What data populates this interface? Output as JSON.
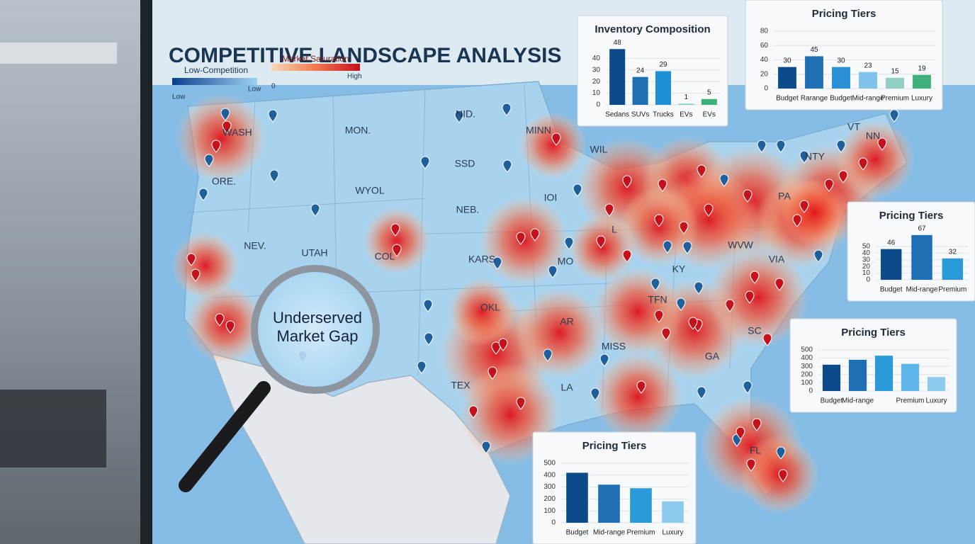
{
  "header": {
    "title": "COMPETITIVE LANDSCAPE ANALYSIS"
  },
  "legend": {
    "low_title": "Low-Competition",
    "low_left": "Low",
    "low_right": "Low",
    "sat_title": "Market Saturation",
    "sat_left": "0",
    "sat_right": "High"
  },
  "map": {
    "labels": [
      "WASH",
      "ORE.",
      "MON.",
      "NID.",
      "SSD",
      "WYOL",
      "NEB.",
      "NEV.",
      "UTAH",
      "COL",
      "KARS",
      "MO",
      "IOI",
      "MINN",
      "WIL",
      "L",
      "OKL",
      "TEX",
      "AR",
      "LA",
      "MISS",
      "KY",
      "TFN",
      "GA",
      "SC",
      "FL",
      "WVW",
      "VIA",
      "PA",
      "NTY",
      "VT",
      "NN"
    ]
  },
  "callout": {
    "lines": [
      "Underserved",
      "Market Gap"
    ]
  },
  "chart_data": [
    {
      "type": "bar",
      "title": "Inventory Composition",
      "categories": [
        "Sedans",
        "SUVs",
        "Trucks",
        "EVs",
        "EVs"
      ],
      "values": [
        48,
        24,
        29,
        1,
        5
      ],
      "colors": [
        "#0d4a8a",
        "#1f6fb5",
        "#1e90d6",
        "#7fd0c8",
        "#3fb07a"
      ],
      "ylim": [
        0,
        50
      ],
      "yticks": [
        0,
        10,
        20,
        30,
        40
      ],
      "grid": true
    },
    {
      "type": "bar",
      "title": "Pricing Tiers",
      "categories": [
        "Budget",
        "Rarange",
        "Budget",
        "Mid-range",
        "Premium",
        "Luxury"
      ],
      "values": [
        30,
        45,
        30,
        23,
        15,
        19
      ],
      "colors": [
        "#0d4a8a",
        "#1f6fb5",
        "#2a8fd6",
        "#7fc2ec",
        "#8fd0c4",
        "#3fb07a"
      ],
      "ylim": [
        0,
        80
      ],
      "yticks": [
        0,
        20,
        40,
        60,
        80
      ],
      "grid": true
    },
    {
      "type": "bar",
      "title": "Pricing Tiers",
      "categories": [
        "Budget",
        "Mid-range",
        "Premium"
      ],
      "values": [
        46,
        67,
        32
      ],
      "colors": [
        "#0d4a8a",
        "#1f6fb5",
        "#2a9ad8"
      ],
      "ylim": [
        0,
        70
      ],
      "yticks": [
        0,
        10,
        20,
        30,
        40,
        50
      ],
      "grid": true
    },
    {
      "type": "bar",
      "title": "Pricing Tiers",
      "categories": [
        "Budget",
        "Mid-range",
        null,
        "Premium",
        "Luxury"
      ],
      "values": [
        320,
        380,
        430,
        330,
        170
      ],
      "colors": [
        "#0d4a8a",
        "#1f6fb5",
        "#2a9ad8",
        "#5cb4e8",
        "#8ccbee"
      ],
      "ylim": [
        0,
        500
      ],
      "yticks": [
        0,
        100,
        200,
        300,
        400,
        500
      ],
      "grid": true
    },
    {
      "type": "bar",
      "title": "Pricing Tiers",
      "categories": [
        "Budget",
        "Mid-range",
        "Premium",
        "Luxury"
      ],
      "values": [
        420,
        320,
        290,
        180
      ],
      "colors": [
        "#0d4a8a",
        "#1f6fb5",
        "#2a9ad8",
        "#8ccbee"
      ],
      "ylim": [
        0,
        500
      ],
      "yticks": [
        0,
        100,
        200,
        300,
        400,
        500
      ],
      "grid": true
    }
  ]
}
